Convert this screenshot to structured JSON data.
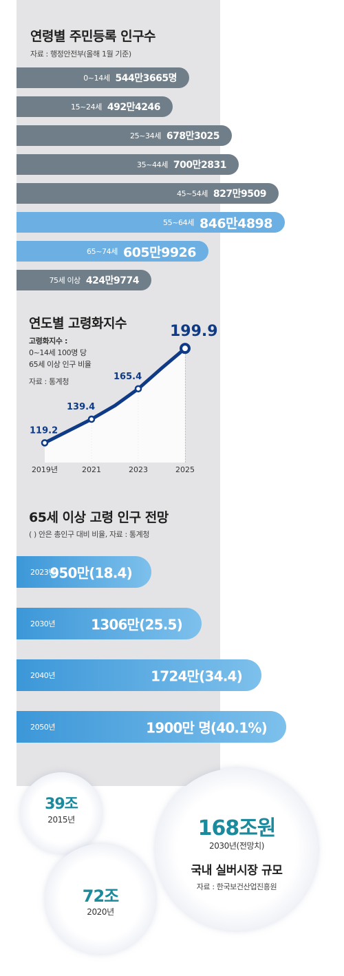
{
  "section1": {
    "title": "연령별 주민등록 인구수",
    "source": "자료 : 행정안전부(올해 1월 기준)"
  },
  "section2": {
    "title": "연도별 고령화지수",
    "note_bold": "고령화지수 :",
    "note_line1": "0~14세 100명 당",
    "note_line2": "65세 이상 인구 비율",
    "source": "자료 : 통계청"
  },
  "section3": {
    "title": "65세 이상 고령 인구 전망",
    "source": "(  ) 안은 총인구 대비 비율, 자료 : 통계청"
  },
  "market": {
    "bubble_2015": {
      "amount": "39조",
      "year": "2015년"
    },
    "bubble_2020": {
      "amount": "72조",
      "year": "2020년"
    },
    "bubble_2030": {
      "amount": "168조원",
      "year": "2030년(전망치)",
      "title": "국내 실버시장 규모",
      "source": "자료 : 한국보건산업진흥원"
    }
  },
  "colors": {
    "bar_gray": "#6f7e88",
    "bar_highlight": "#6cb0e3",
    "line_navy": "#0f3a86",
    "teal_text": "#1a8a9c"
  },
  "chart_data": [
    {
      "type": "bar",
      "orientation": "horizontal",
      "title": "연령별 주민등록 인구수",
      "categories": [
        "0~14세",
        "15~24세",
        "25~34세",
        "35~44세",
        "45~54세",
        "55~64세",
        "65~74세",
        "75세 이상"
      ],
      "values": [
        5443665,
        4924246,
        6783025,
        7002831,
        8279509,
        8464898,
        6059926,
        4249774
      ],
      "value_labels": [
        "544만3665명",
        "492만4246",
        "678만3025",
        "700만2831",
        "827만9509",
        "846만4898",
        "605만9926",
        "424만9774"
      ],
      "highlight": [
        "55~64세",
        "65~74세"
      ]
    },
    {
      "type": "line",
      "title": "연도별 고령화지수",
      "x": [
        2019,
        2021,
        2022,
        2023,
        2024,
        2025
      ],
      "y": [
        119.2,
        139.4,
        151.0,
        165.4,
        183.0,
        199.9
      ],
      "labeled_points": [
        2019,
        2021,
        2023,
        2025
      ],
      "x_tick_labels": [
        "2019년",
        "2021",
        "2023",
        "2025"
      ],
      "ylim": [
        110,
        210
      ]
    },
    {
      "type": "bar",
      "orientation": "horizontal",
      "title": "65세 이상 고령 인구 전망",
      "categories": [
        "2023년",
        "2030년",
        "2040년",
        "2050년"
      ],
      "values": [
        950,
        1306,
        1724,
        1900
      ],
      "percents": [
        18.4,
        25.5,
        34.4,
        40.1
      ],
      "value_labels": [
        "950만(18.4)",
        "1306만(25.5)",
        "1724만(34.4)",
        "1900만 명(40.1%)"
      ]
    },
    {
      "type": "bubble",
      "title": "국내 실버시장 규모",
      "categories": [
        "2015년",
        "2020년",
        "2030년(전망치)"
      ],
      "values": [
        39,
        72,
        168
      ],
      "value_labels": [
        "39조",
        "72조",
        "168조원"
      ]
    }
  ]
}
